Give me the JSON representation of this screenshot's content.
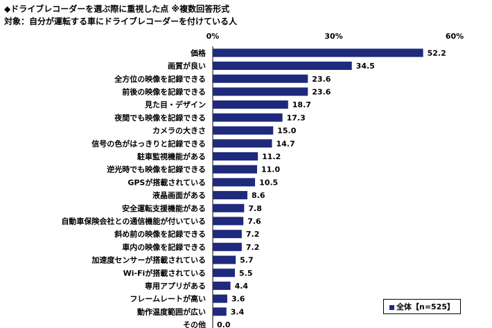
{
  "chart_data": {
    "type": "bar",
    "orientation": "horizontal",
    "title": "◆ドライブレコーダーを選ぶ際に重視した点 ※複数回答形式",
    "subtitle": "対象：自分が運転する車にドライブレコーダーを付けている人",
    "categories": [
      "価格",
      "画質が良い",
      "全方位の映像を記録できる",
      "前後の映像を記録できる",
      "見た目・デザイン",
      "夜間でも映像を記録できる",
      "カメラの大きさ",
      "信号の色がはっきりと記録できる",
      "駐車監視機能がある",
      "逆光時でも映像を記録できる",
      "GPSが搭載されている",
      "液晶画面がある",
      "安全運転支援機能がある",
      "自動車保険会社との通信機能が付いている",
      "斜め前の映像を記録できる",
      "車内の映像を記録できる",
      "加速度センサーが搭載されている",
      "Wi-Fiが搭載されている",
      "専用アプリがある",
      "フレームレートが高い",
      "動作温度範囲が広い",
      "その他"
    ],
    "series": [
      {
        "name": "全体【n=525】",
        "values": [
          52.2,
          34.5,
          23.6,
          23.6,
          18.7,
          17.3,
          15.0,
          14.7,
          11.2,
          11.0,
          10.5,
          8.6,
          7.8,
          7.6,
          7.2,
          7.2,
          5.7,
          5.5,
          4.4,
          3.6,
          3.4,
          0.0
        ]
      }
    ],
    "value_labels": [
      "52.2",
      "34.5",
      "23.6",
      "23.6",
      "18.7",
      "17.3",
      "15.0",
      "14.7",
      "11.2",
      "11.0",
      "10.5",
      "8.6",
      "7.8",
      "7.6",
      "7.2",
      "7.2",
      "5.7",
      "5.5",
      "4.4",
      "3.6",
      "3.4",
      "0.0"
    ],
    "xticks": [
      "0%",
      "30%",
      "60%"
    ],
    "xtick_values": [
      0,
      30,
      60
    ],
    "xlim": [
      0,
      60
    ],
    "grid": false,
    "legend_position": "bottom-right",
    "bar_color": "#1f2a7c"
  }
}
